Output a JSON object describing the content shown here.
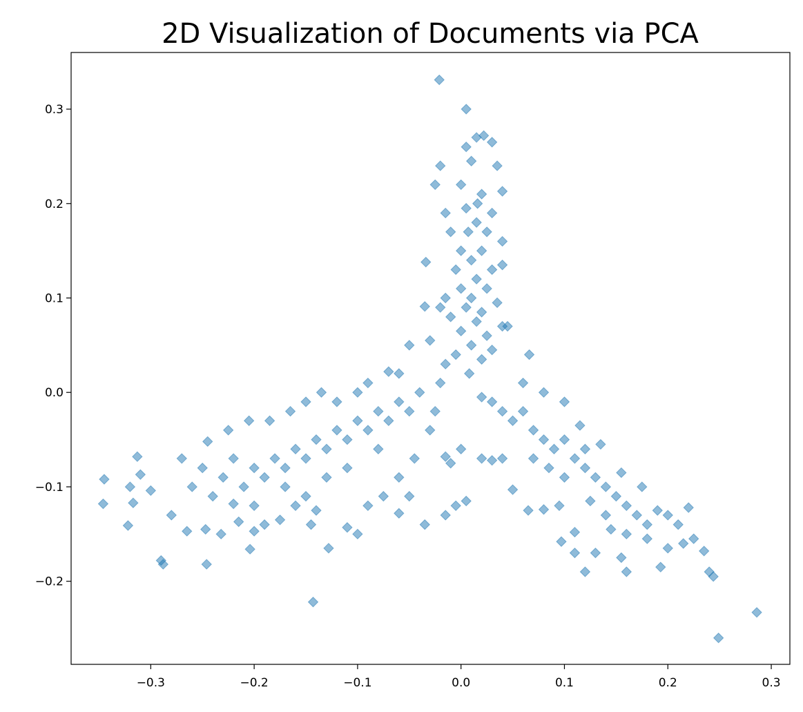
{
  "chart_data": {
    "type": "scatter",
    "title": "2D Visualization of Documents via PCA",
    "series": [
      {
        "color": "#1f77b4",
        "x": [
          -0.021,
          0.005,
          0.286,
          0.249,
          -0.143,
          -0.345,
          -0.346,
          -0.322,
          -0.29,
          -0.288,
          -0.246,
          -0.204,
          -0.034,
          0.244,
          0.005,
          0.015,
          0.022,
          0.03,
          -0.02,
          0.01,
          0.035,
          -0.025,
          0.0,
          0.02,
          0.04,
          -0.015,
          0.005,
          0.03,
          0.015,
          -0.01,
          0.025,
          0.04,
          0.0,
          0.02,
          0.01,
          -0.005,
          0.03,
          0.04,
          0.015,
          0.0,
          0.025,
          -0.015,
          0.01,
          0.035,
          0.005,
          0.02,
          -0.01,
          0.015,
          0.04,
          0.0,
          0.025,
          0.01,
          0.03,
          -0.005,
          0.02,
          0.045,
          -0.02,
          -0.035,
          -0.03,
          0.066,
          -0.015,
          0.008,
          0.016,
          0.007,
          -0.02,
          -0.04,
          -0.05,
          -0.06,
          -0.07,
          -0.08,
          -0.09,
          -0.1,
          -0.11,
          -0.12,
          -0.13,
          -0.14,
          -0.15,
          -0.16,
          -0.17,
          -0.18,
          -0.19,
          -0.2,
          -0.21,
          -0.22,
          -0.23,
          -0.24,
          -0.25,
          -0.26,
          -0.27,
          -0.28,
          -0.3,
          -0.31,
          -0.313,
          -0.32,
          -0.317,
          -0.265,
          -0.247,
          -0.232,
          -0.215,
          -0.2,
          -0.19,
          -0.175,
          -0.16,
          -0.14,
          -0.128,
          -0.11,
          -0.1,
          -0.09,
          -0.075,
          -0.06,
          -0.05,
          -0.035,
          -0.015,
          -0.045,
          -0.03,
          -0.025,
          -0.06,
          -0.07,
          -0.09,
          -0.1,
          -0.12,
          -0.135,
          -0.15,
          -0.165,
          -0.185,
          -0.205,
          -0.225,
          -0.245,
          -0.15,
          -0.13,
          -0.11,
          -0.08,
          -0.17,
          -0.2,
          -0.22,
          -0.06,
          -0.005,
          -0.145,
          -0.05,
          0.02,
          0.03,
          0.04,
          0.05,
          0.06,
          0.07,
          0.08,
          0.09,
          0.1,
          0.11,
          0.12,
          0.13,
          0.14,
          0.15,
          0.16,
          0.17,
          0.18,
          0.19,
          0.2,
          0.21,
          0.22,
          0.215,
          0.225,
          0.235,
          0.24,
          0.2,
          0.193,
          0.16,
          0.155,
          0.13,
          0.12,
          0.11,
          0.097,
          0.11,
          0.095,
          0.08,
          0.065,
          0.05,
          0.04,
          0.03,
          0.02,
          0.0,
          -0.01,
          0.005,
          -0.015,
          0.06,
          0.08,
          0.1,
          0.115,
          0.135,
          0.155,
          0.175,
          0.12,
          0.1,
          0.085,
          0.07,
          0.14,
          0.125,
          0.16,
          0.18,
          0.145
        ],
        "values": [
          0.331,
          0.3,
          -0.233,
          -0.26,
          -0.222,
          -0.092,
          -0.118,
          -0.141,
          -0.178,
          -0.182,
          -0.182,
          -0.166,
          0.138,
          -0.195,
          0.26,
          0.27,
          0.272,
          0.265,
          0.24,
          0.245,
          0.24,
          0.22,
          0.22,
          0.21,
          0.213,
          0.19,
          0.195,
          0.19,
          0.18,
          0.17,
          0.17,
          0.16,
          0.15,
          0.15,
          0.14,
          0.13,
          0.13,
          0.135,
          0.12,
          0.11,
          0.11,
          0.1,
          0.1,
          0.095,
          0.09,
          0.085,
          0.08,
          0.075,
          0.07,
          0.065,
          0.06,
          0.05,
          0.045,
          0.04,
          0.035,
          0.07,
          0.09,
          0.091,
          0.055,
          0.04,
          0.03,
          0.02,
          0.2,
          0.17,
          0.01,
          0.0,
          -0.02,
          -0.01,
          -0.03,
          -0.02,
          -0.04,
          -0.03,
          -0.05,
          -0.04,
          -0.06,
          -0.05,
          -0.07,
          -0.06,
          -0.08,
          -0.07,
          -0.09,
          -0.08,
          -0.1,
          -0.07,
          -0.09,
          -0.11,
          -0.08,
          -0.1,
          -0.07,
          -0.13,
          -0.104,
          -0.087,
          -0.068,
          -0.1,
          -0.117,
          -0.147,
          -0.145,
          -0.15,
          -0.137,
          -0.147,
          -0.14,
          -0.135,
          -0.12,
          -0.125,
          -0.165,
          -0.143,
          -0.15,
          -0.12,
          -0.11,
          -0.09,
          -0.11,
          -0.14,
          -0.13,
          -0.07,
          -0.04,
          -0.02,
          0.02,
          0.022,
          0.01,
          0.0,
          -0.01,
          0.0,
          -0.01,
          -0.02,
          -0.03,
          -0.03,
          -0.04,
          -0.052,
          -0.11,
          -0.09,
          -0.08,
          -0.06,
          -0.1,
          -0.12,
          -0.118,
          -0.128,
          -0.12,
          -0.14,
          0.05,
          -0.005,
          -0.01,
          -0.02,
          -0.03,
          -0.02,
          -0.04,
          -0.05,
          -0.06,
          -0.05,
          -0.07,
          -0.08,
          -0.09,
          -0.1,
          -0.11,
          -0.12,
          -0.13,
          -0.14,
          -0.125,
          -0.13,
          -0.14,
          -0.122,
          -0.16,
          -0.155,
          -0.168,
          -0.19,
          -0.165,
          -0.185,
          -0.19,
          -0.175,
          -0.17,
          -0.19,
          -0.17,
          -0.158,
          -0.148,
          -0.12,
          -0.124,
          -0.125,
          -0.103,
          -0.07,
          -0.072,
          -0.07,
          -0.06,
          -0.075,
          -0.115,
          -0.068,
          0.01,
          0.0,
          -0.01,
          -0.035,
          -0.055,
          -0.085,
          -0.1,
          -0.06,
          -0.09,
          -0.08,
          -0.07,
          -0.13,
          -0.115,
          -0.15,
          -0.155,
          -0.145
        ]
      }
    ],
    "xlim": [
      -0.377,
      0.318
    ],
    "ylim": [
      -0.288,
      0.36
    ],
    "xticks": [
      {
        "value": -0.3,
        "label": "−0.3"
      },
      {
        "value": -0.2,
        "label": "−0.2"
      },
      {
        "value": -0.1,
        "label": "−0.1"
      },
      {
        "value": 0,
        "label": "0.0"
      },
      0.1,
      0.2,
      0.3
    ],
    "yticks": [
      {
        "value": -0.2,
        "label": "−0.2"
      },
      {
        "value": -0.1,
        "label": "−0.1"
      },
      {
        "value": 0,
        "label": "0.0"
      },
      0.1,
      0.2,
      0.3
    ]
  }
}
